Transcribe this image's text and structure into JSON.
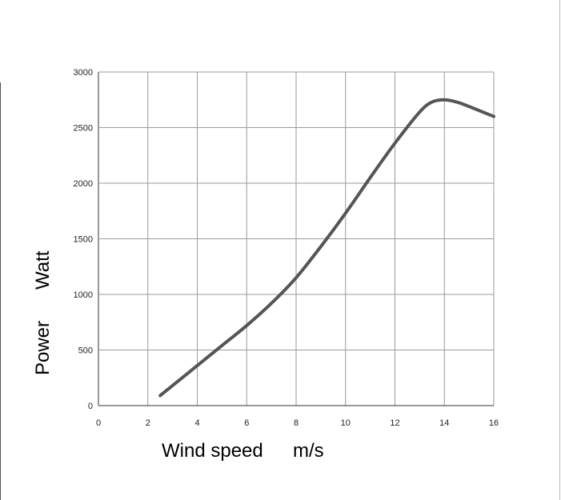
{
  "chart_data": {
    "type": "line",
    "xlabel": "Wind speed",
    "xunit": "m/s",
    "ylabel": "Power",
    "yunit": "Watt",
    "xlim": [
      0,
      16
    ],
    "ylim": [
      0,
      3000
    ],
    "xticks": [
      "0",
      "2",
      "4",
      "6",
      "8",
      "10",
      "12",
      "14",
      "16"
    ],
    "yticks": [
      "0",
      "500",
      "1000",
      "1500",
      "2000",
      "2500",
      "3000"
    ],
    "grid": true,
    "line_color": "#555555",
    "series": [
      {
        "x": [
          2.5,
          3,
          4,
          5,
          6,
          7,
          8,
          9,
          10,
          11,
          12,
          13,
          13.5,
          14,
          14.5,
          15,
          16
        ],
        "y": [
          90,
          180,
          360,
          540,
          720,
          920,
          1150,
          1430,
          1730,
          2050,
          2360,
          2640,
          2730,
          2750,
          2730,
          2690,
          2600
        ]
      }
    ]
  }
}
